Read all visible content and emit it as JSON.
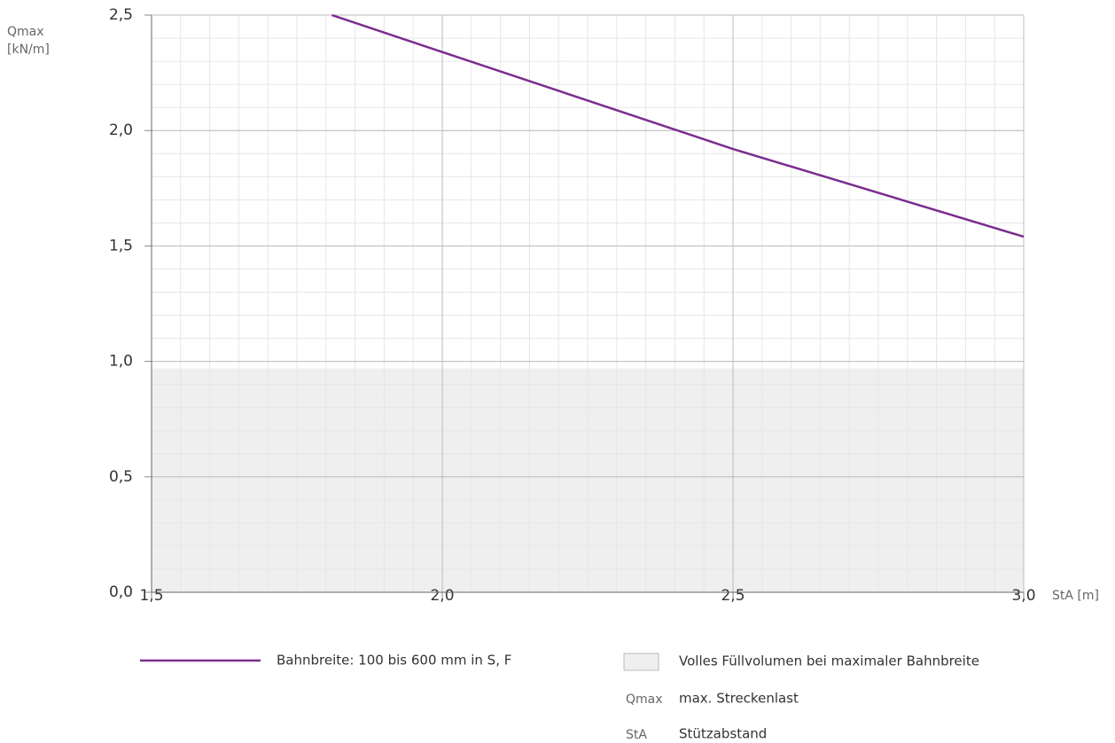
{
  "chart_data": {
    "type": "line",
    "ylabel_lines": [
      "Qmax",
      "[kN/m]"
    ],
    "xlabel": "StA [m]",
    "x": [
      1.81,
      2.0,
      2.5,
      3.0
    ],
    "series": [
      {
        "name": "Bahnbreite: 100 bis 600 mm in S, F",
        "color": "#7b2d8e",
        "values": [
          2.5,
          2.34,
          1.92,
          1.54
        ]
      }
    ],
    "shaded_region": {
      "ylim": [
        0,
        0.97
      ],
      "color": "#efefef",
      "label": "Volles Füllvolumen bei maximaler Bahnbreite"
    },
    "xlim": [
      1.5,
      3.0
    ],
    "ylim": [
      0,
      2.5
    ],
    "xticks": [
      {
        "value": 1.5,
        "label": "1,5"
      },
      {
        "value": 2.0,
        "label": "2,0"
      },
      {
        "value": 2.5,
        "label": "2,5"
      },
      {
        "value": 3.0,
        "label": "3,0"
      }
    ],
    "yticks": [
      {
        "value": 0,
        "label": "0,0"
      },
      {
        "value": 0.5,
        "label": "0,5"
      },
      {
        "value": 1.0,
        "label": "1,0"
      },
      {
        "value": 1.5,
        "label": "1,5"
      },
      {
        "value": 2.0,
        "label": "2,0"
      },
      {
        "value": 2.5,
        "label": "2,5"
      }
    ],
    "grid": true,
    "minor_grid": {
      "x": 0.05,
      "y": 0.1
    },
    "abbreviations": [
      {
        "term": "Qmax",
        "meaning": "max. Streckenlast"
      },
      {
        "term": "StA",
        "meaning": "Stützabstand"
      }
    ]
  }
}
